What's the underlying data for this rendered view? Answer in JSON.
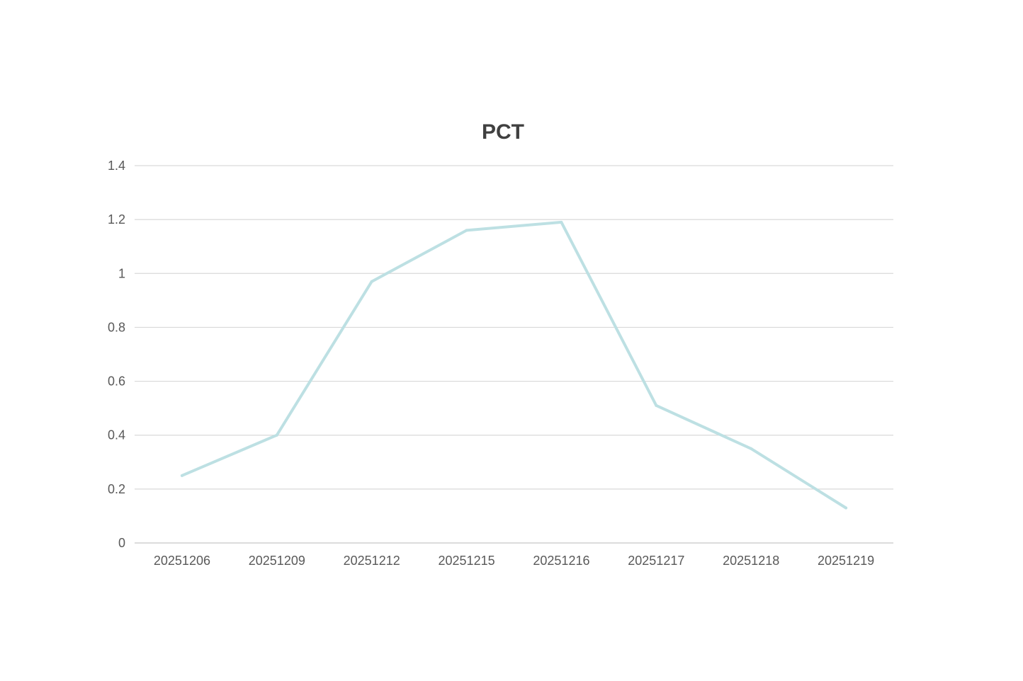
{
  "chart_data": {
    "type": "line",
    "title": "PCT",
    "xlabel": "",
    "ylabel": "",
    "categories": [
      "20251206",
      "20251209",
      "20251212",
      "20251215",
      "20251216",
      "20251217",
      "20251218",
      "20251219"
    ],
    "series": [
      {
        "values": [
          0.25,
          0.4,
          0.97,
          1.16,
          1.19,
          0.51,
          0.35,
          0.13
        ],
        "color": "#bde0e3"
      }
    ],
    "ylim": [
      0,
      1.4
    ],
    "yticks": [
      "0",
      "0.2",
      "0.4",
      "0.6",
      "0.8",
      "1",
      "1.2",
      "1.4"
    ],
    "grid": true,
    "legend": "none"
  }
}
